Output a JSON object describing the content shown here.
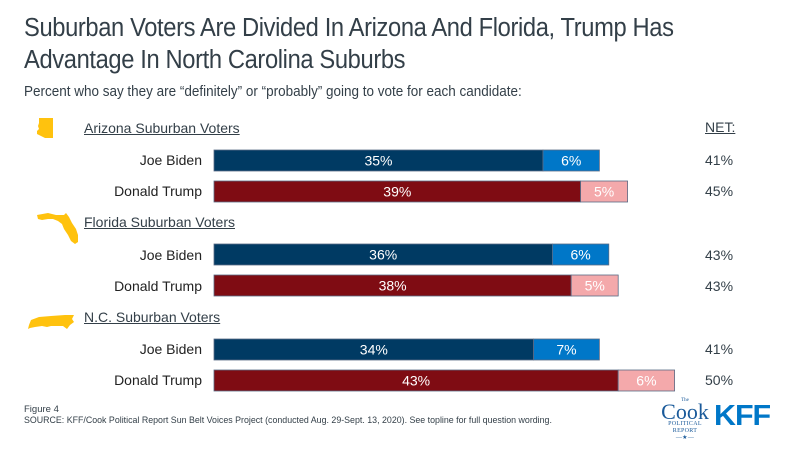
{
  "header": {
    "title_line1": "Suburban Voters Are Divided In Arizona And Florida, Trump Has",
    "title_line2": "Advantage In North Carolina Suburbs",
    "subtitle": "Percent who say they are “definitely” or “probably” going to vote for each candidate:"
  },
  "net_header": "NET:",
  "footer": {
    "figure": "Figure 4",
    "source": "SOURCE: KFF/Cook Political Report Sun Belt Voices Project (conducted Aug. 29-Sept. 13, 2020). See topline for full question wording."
  },
  "logos": {
    "cook_the": "The",
    "cook_main": "Cook",
    "cook_sub1": "POLITICAL",
    "cook_sub2": "REPORT",
    "cook_star": "—★—",
    "kff": "KFF"
  },
  "colors": {
    "biden_definitely": "#003a63",
    "biden_probably": "#0077c8",
    "trump_definitely": "#7f0c13",
    "trump_probably": "#f4a9ab",
    "state_icon": "#ffc20e"
  },
  "chart_data": {
    "type": "bar",
    "orientation": "horizontal",
    "stacked": true,
    "title": "Suburban Voters Are Divided In Arizona And Florida, Trump Has Advantage In North Carolina Suburbs",
    "subtitle": "Percent who say they are “definitely” or “probably” going to vote for each candidate:",
    "stack_segments": [
      "Definitely",
      "Probably"
    ],
    "xlim": [
      0,
      55
    ],
    "groups": [
      {
        "name": "Arizona Suburban Voters",
        "icon": "arizona-state-icon",
        "rows": [
          {
            "candidate": "Joe Biden",
            "definitely": 35,
            "probably": 6,
            "net": "41%",
            "labels": [
              "35%",
              "6%"
            ]
          },
          {
            "candidate": "Donald Trump",
            "definitely": 39,
            "probably": 5,
            "net": "45%",
            "labels": [
              "39%",
              "5%"
            ]
          }
        ]
      },
      {
        "name": "Florida Suburban Voters",
        "icon": "florida-state-icon",
        "rows": [
          {
            "candidate": "Joe Biden",
            "definitely": 36,
            "probably": 6,
            "net": "43%",
            "labels": [
              "36%",
              "6%"
            ]
          },
          {
            "candidate": "Donald Trump",
            "definitely": 38,
            "probably": 5,
            "net": "43%",
            "labels": [
              "38%",
              "5%"
            ]
          }
        ]
      },
      {
        "name": "N.C. Suburban Voters",
        "icon": "north-carolina-state-icon",
        "rows": [
          {
            "candidate": "Joe Biden",
            "definitely": 34,
            "probably": 7,
            "net": "41%",
            "labels": [
              "34%",
              "7%"
            ]
          },
          {
            "candidate": "Donald Trump",
            "definitely": 43,
            "probably": 6,
            "net": "50%",
            "labels": [
              "43%",
              "6%"
            ]
          }
        ]
      }
    ]
  }
}
